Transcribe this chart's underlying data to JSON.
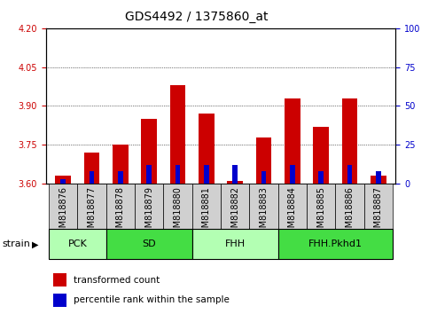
{
  "title": "GDS4492 / 1375860_at",
  "samples": [
    "GSM818876",
    "GSM818877",
    "GSM818878",
    "GSM818879",
    "GSM818880",
    "GSM818881",
    "GSM818882",
    "GSM818883",
    "GSM818884",
    "GSM818885",
    "GSM818886",
    "GSM818887"
  ],
  "red_values": [
    3.63,
    3.72,
    3.75,
    3.85,
    3.98,
    3.87,
    3.61,
    3.78,
    3.93,
    3.82,
    3.93,
    3.63
  ],
  "blue_values_pct": [
    3,
    8,
    8,
    12,
    12,
    12,
    12,
    8,
    12,
    8,
    12,
    8
  ],
  "y_min": 3.6,
  "y_max": 4.2,
  "y_ticks": [
    3.6,
    3.75,
    3.9,
    4.05,
    4.2
  ],
  "y_right_ticks": [
    0,
    25,
    50,
    75,
    100
  ],
  "group_spans": [
    [
      0,
      1,
      "PCK",
      "#b3ffb3"
    ],
    [
      2,
      4,
      "SD",
      "#44dd44"
    ],
    [
      5,
      7,
      "FHH",
      "#b3ffb3"
    ],
    [
      8,
      11,
      "FHH.Pkhd1",
      "#44dd44"
    ]
  ],
  "bar_color_red": "#cc0000",
  "bar_color_blue": "#0000cc",
  "bar_width": 0.55,
  "blue_bar_width": 0.18,
  "left_label_color": "#cc0000",
  "right_label_color": "#0000cc",
  "title_fontsize": 10,
  "tick_fontsize": 7,
  "legend_fontsize": 7.5,
  "group_label_fontsize": 8,
  "strain_label": "strain"
}
